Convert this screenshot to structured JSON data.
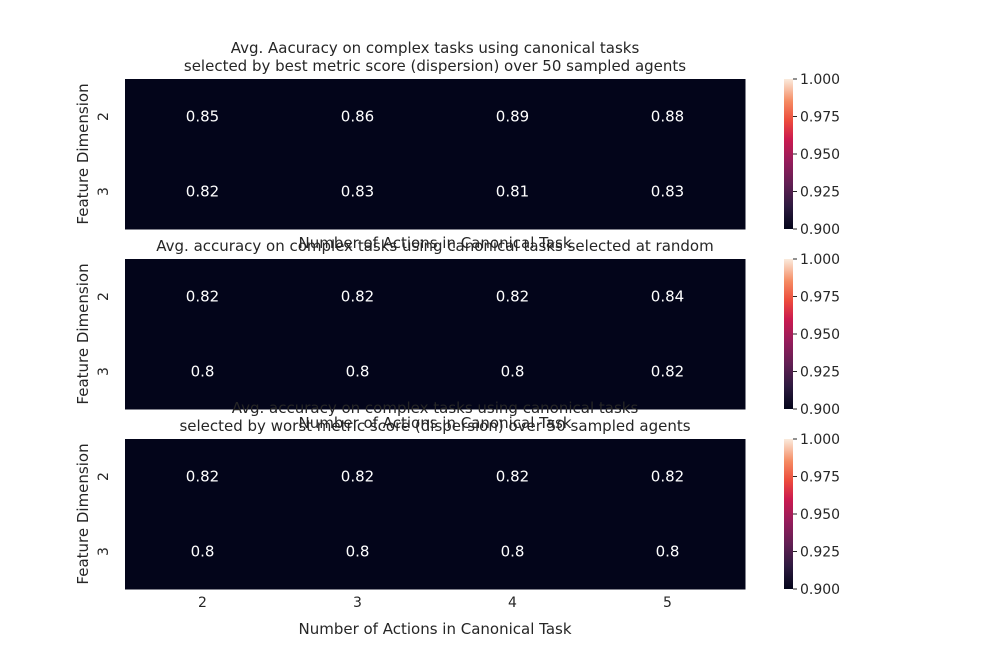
{
  "chart_data": [
    {
      "type": "heatmap",
      "title_lines": [
        "Avg. Aacuracy on complex tasks using canonical tasks",
        "selected by best metric score (dispersion) over 50 sampled agents"
      ],
      "xlabel": "Number of Actions in Canonical Task",
      "ylabel": "Feature Dimension",
      "x_categories": [
        "2",
        "3",
        "4",
        "5"
      ],
      "y_categories": [
        "2",
        "3"
      ],
      "values": [
        [
          0.85,
          0.86,
          0.89,
          0.88
        ],
        [
          0.82,
          0.83,
          0.81,
          0.83
        ]
      ],
      "value_labels": [
        [
          "0.85",
          "0.86",
          "0.89",
          "0.88"
        ],
        [
          "0.82",
          "0.83",
          "0.81",
          "0.83"
        ]
      ],
      "colorbar": {
        "vmin": 0.9,
        "vmax": 1.0,
        "ticks": [
          "0.900",
          "0.925",
          "0.950",
          "0.975",
          "1.000"
        ],
        "colormap": "rocket"
      },
      "show_xticks": false
    },
    {
      "type": "heatmap",
      "title_lines": [
        "Avg. accuracy on complex tasks using canonical tasks selected at random"
      ],
      "xlabel": "Number of Actions in Canonical Task",
      "ylabel": "Feature Dimension",
      "x_categories": [
        "2",
        "3",
        "4",
        "5"
      ],
      "y_categories": [
        "2",
        "3"
      ],
      "values": [
        [
          0.82,
          0.82,
          0.82,
          0.84
        ],
        [
          0.8,
          0.8,
          0.8,
          0.82
        ]
      ],
      "value_labels": [
        [
          "0.82",
          "0.82",
          "0.82",
          "0.84"
        ],
        [
          "0.8",
          "0.8",
          "0.8",
          "0.82"
        ]
      ],
      "colorbar": {
        "vmin": 0.9,
        "vmax": 1.0,
        "ticks": [
          "0.900",
          "0.925",
          "0.950",
          "0.975",
          "1.000"
        ],
        "colormap": "rocket"
      },
      "show_xticks": false
    },
    {
      "type": "heatmap",
      "title_lines": [
        "Avg. accuracy on complex tasks using canonical tasks",
        "selected by worst metric score (dispersion) over 50 sampled agents"
      ],
      "xlabel": "Number of Actions in Canonical Task",
      "ylabel": "Feature Dimension",
      "x_categories": [
        "2",
        "3",
        "4",
        "5"
      ],
      "y_categories": [
        "2",
        "3"
      ],
      "values": [
        [
          0.82,
          0.82,
          0.82,
          0.82
        ],
        [
          0.8,
          0.8,
          0.8,
          0.8
        ]
      ],
      "value_labels": [
        [
          "0.82",
          "0.82",
          "0.82",
          "0.82"
        ],
        [
          "0.8",
          "0.8",
          "0.8",
          "0.8"
        ]
      ],
      "colorbar": {
        "vmin": 0.9,
        "vmax": 1.0,
        "ticks": [
          "0.900",
          "0.925",
          "0.950",
          "0.975",
          "1.000"
        ],
        "colormap": "rocket"
      },
      "show_xticks": true
    }
  ]
}
